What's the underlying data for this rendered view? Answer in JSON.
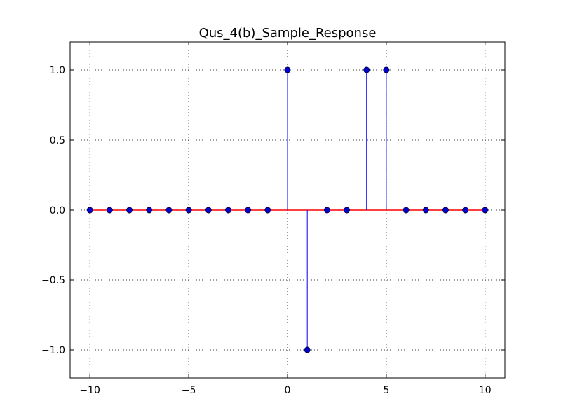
{
  "chart_data": {
    "type": "stem",
    "title": "Qus_4(b)_Sample_Response",
    "xlabel": "",
    "ylabel": "",
    "xlim": [
      -11,
      11
    ],
    "ylim": [
      -1.2,
      1.2
    ],
    "x_ticks": [
      -10,
      -5,
      0,
      5,
      10
    ],
    "x_tick_labels": [
      "−10",
      "−5",
      "0",
      "5",
      "10"
    ],
    "y_ticks": [
      -1.0,
      -0.5,
      0.0,
      0.5,
      1.0
    ],
    "y_tick_labels": [
      "−1.0",
      "−0.5",
      "0.0",
      "0.5",
      "1.0"
    ],
    "grid": true,
    "x": [
      -10,
      -9,
      -8,
      -7,
      -6,
      -5,
      -4,
      -3,
      -2,
      -1,
      0,
      1,
      2,
      3,
      4,
      5,
      6,
      7,
      8,
      9,
      10
    ],
    "values": [
      0,
      0,
      0,
      0,
      0,
      0,
      0,
      0,
      0,
      0,
      1,
      -1,
      0,
      0,
      1,
      1,
      0,
      0,
      0,
      0,
      0
    ],
    "colors": {
      "stem": "#0000ff",
      "marker": "#0000cc",
      "baseline": "#ff0000"
    }
  }
}
